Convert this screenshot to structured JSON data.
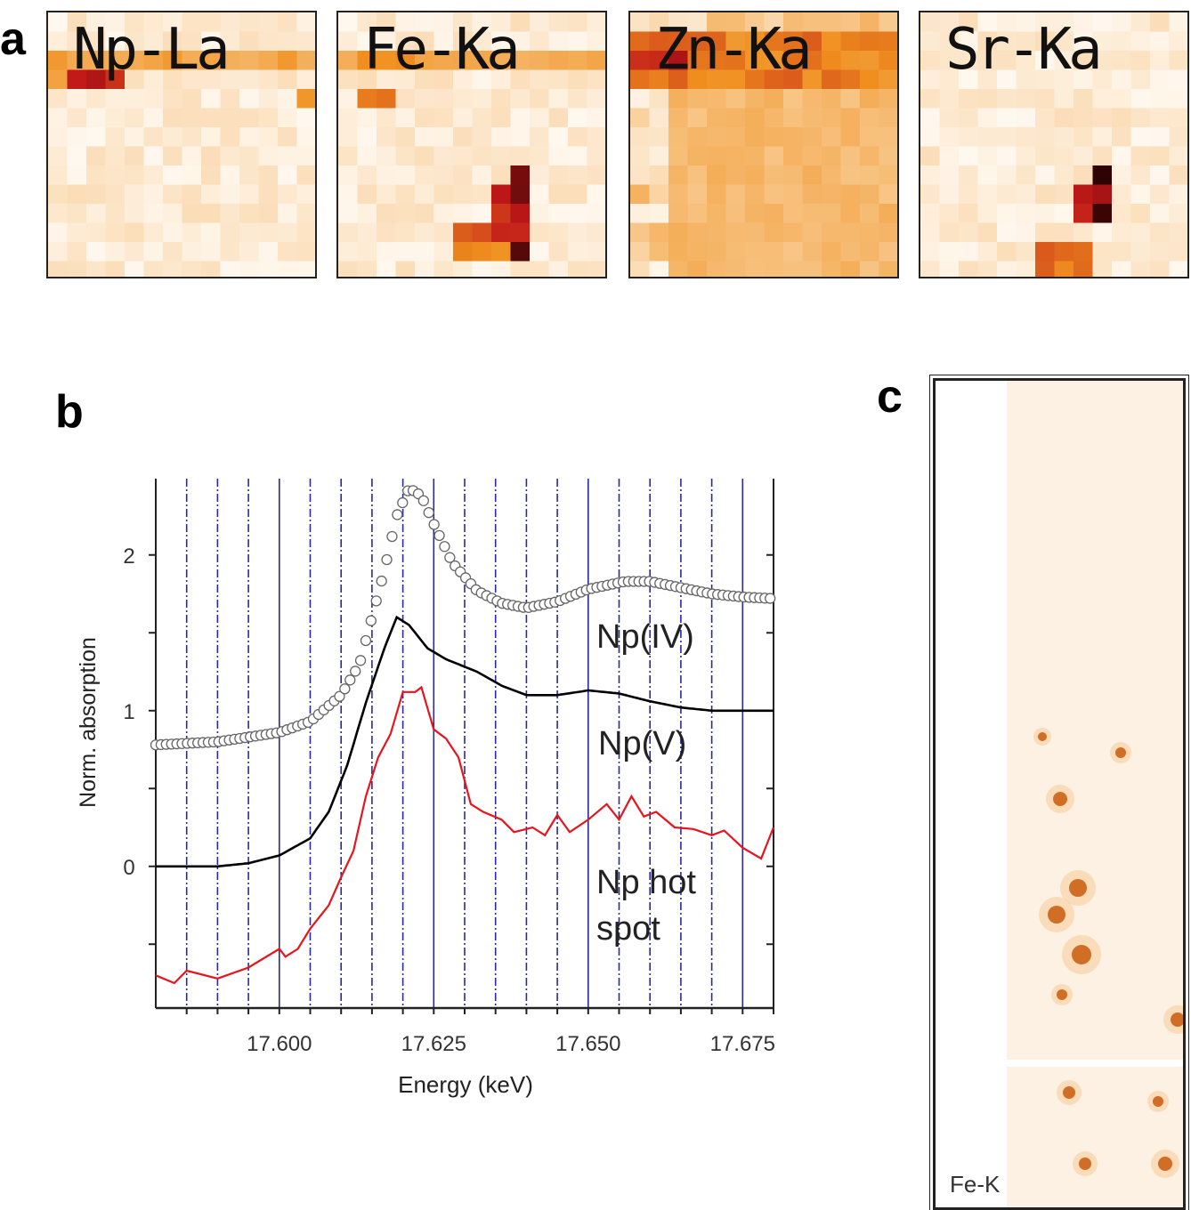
{
  "panels": {
    "a": {
      "label": "a",
      "maps": [
        {
          "title": "Np-La"
        },
        {
          "title": "Fe-Ka"
        },
        {
          "title": "Zn-Ka"
        },
        {
          "title": "Sr-Ka"
        }
      ]
    },
    "b": {
      "label": "b"
    },
    "c": {
      "label": "c",
      "map_title": "Fe-K"
    }
  },
  "colors": {
    "map_low": "#fff8ef",
    "map_mid": "#f0901e",
    "map_high": "#c01818",
    "map_max": "#1a0000",
    "np_iv": "#555555",
    "np_v": "#000000",
    "hot_spot": "#e8141c",
    "grid": "#2a2aa0"
  },
  "chart_data": {
    "type": "line",
    "xlabel": "Energy (keV)",
    "ylabel": "Norm. absorption",
    "xlim": [
      17.58,
      17.68
    ],
    "ylim": [
      -0.91,
      2.49
    ],
    "xticks": [
      17.6,
      17.625,
      17.65,
      17.675
    ],
    "xtick_labels": [
      "17.600",
      "17.625",
      "17.650",
      "17.675"
    ],
    "yticks": [
      0,
      1,
      2
    ],
    "ytick_labels": [
      "0",
      "1",
      "2"
    ],
    "grid": "vertical lines every 0.005 keV (solid at 0.025, dash-dot otherwise)",
    "series": [
      {
        "name": "Np(IV)",
        "style": "open circles",
        "x": [
          17.58,
          17.59,
          17.6,
          17.605,
          17.61,
          17.613,
          17.615,
          17.617,
          17.619,
          17.621,
          17.623,
          17.625,
          17.628,
          17.632,
          17.636,
          17.64,
          17.645,
          17.65,
          17.656,
          17.66,
          17.665,
          17.67,
          17.675,
          17.68
        ],
        "y": [
          0.78,
          0.8,
          0.86,
          0.93,
          1.1,
          1.3,
          1.6,
          1.9,
          2.25,
          2.43,
          2.38,
          2.2,
          1.95,
          1.77,
          1.69,
          1.66,
          1.7,
          1.78,
          1.83,
          1.83,
          1.79,
          1.75,
          1.73,
          1.72
        ]
      },
      {
        "name": "Np(V)",
        "style": "line",
        "x": [
          17.58,
          17.59,
          17.595,
          17.6,
          17.605,
          17.608,
          17.611,
          17.614,
          17.617,
          17.619,
          17.621,
          17.624,
          17.627,
          17.632,
          17.636,
          17.64,
          17.645,
          17.65,
          17.655,
          17.66,
          17.665,
          17.67,
          17.68
        ],
        "y": [
          0,
          0,
          0.02,
          0.07,
          0.18,
          0.35,
          0.65,
          1.05,
          1.4,
          1.6,
          1.55,
          1.4,
          1.33,
          1.25,
          1.16,
          1.1,
          1.1,
          1.13,
          1.11,
          1.06,
          1.02,
          1.0,
          1.0
        ]
      },
      {
        "name": "Np hot spot",
        "style": "line",
        "x": [
          17.58,
          17.583,
          17.585,
          17.59,
          17.595,
          17.6,
          17.601,
          17.603,
          17.605,
          17.608,
          17.61,
          17.612,
          17.614,
          17.616,
          17.618,
          17.62,
          17.622,
          17.623,
          17.625,
          17.627,
          17.629,
          17.631,
          17.633,
          17.636,
          17.638,
          17.641,
          17.643,
          17.645,
          17.647,
          17.65,
          17.653,
          17.655,
          17.657,
          17.659,
          17.661,
          17.664,
          17.667,
          17.67,
          17.672,
          17.675,
          17.678,
          17.68
        ],
        "y": [
          -0.7,
          -0.75,
          -0.67,
          -0.72,
          -0.65,
          -0.53,
          -0.58,
          -0.53,
          -0.4,
          -0.25,
          -0.07,
          0.1,
          0.45,
          0.7,
          0.85,
          1.12,
          1.12,
          1.15,
          0.88,
          0.82,
          0.7,
          0.4,
          0.35,
          0.3,
          0.22,
          0.25,
          0.2,
          0.33,
          0.22,
          0.3,
          0.4,
          0.3,
          0.45,
          0.32,
          0.35,
          0.25,
          0.24,
          0.2,
          0.23,
          0.12,
          0.05,
          0.25
        ]
      }
    ],
    "annotations": [
      "Np(IV)",
      "Np(V)",
      "Np hot",
      "spot"
    ]
  }
}
